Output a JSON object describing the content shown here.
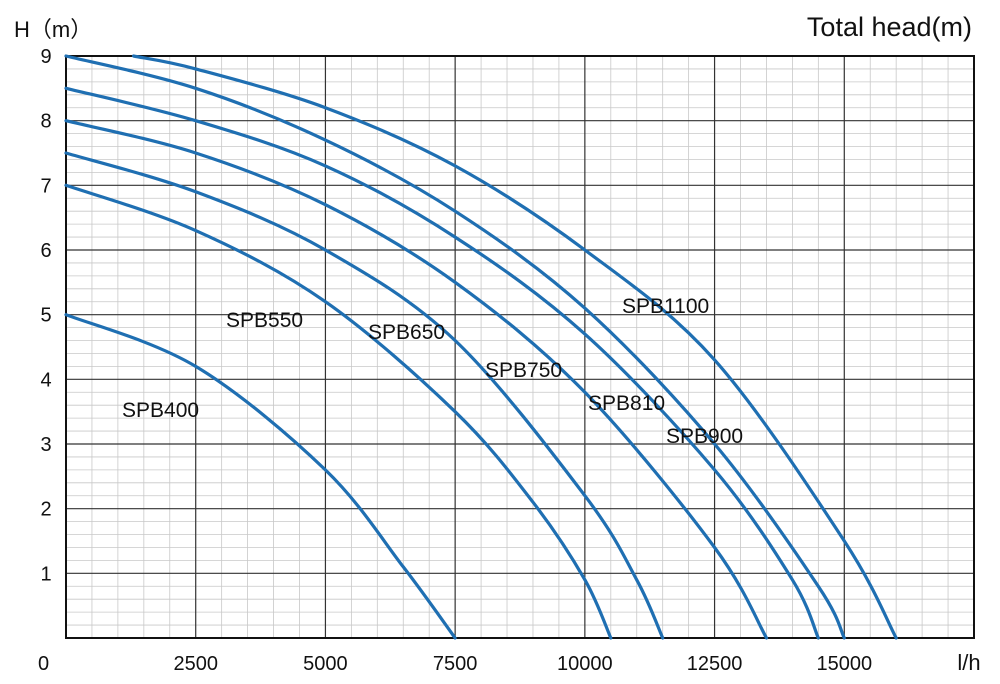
{
  "chart_data": {
    "type": "line",
    "title": "Total head(m)",
    "ylabel": "H（m）",
    "xlabel": "l/h",
    "xlim": [
      0,
      17500
    ],
    "ylim": [
      0,
      9
    ],
    "x_ticks": [
      0,
      2500,
      5000,
      7500,
      10000,
      12500,
      15000
    ],
    "x_tick_labels": [
      "0",
      "2500",
      "5000",
      "7500",
      "10000",
      "12500",
      "15000"
    ],
    "y_ticks": [
      1,
      2,
      3,
      4,
      5,
      6,
      7,
      8,
      9
    ],
    "y_tick_labels": [
      "1",
      "2",
      "3",
      "4",
      "5",
      "6",
      "7",
      "8",
      "9"
    ],
    "grid": true,
    "colors": {
      "curve": "#1f6fb2",
      "grid_major": "#333333",
      "grid_minor": "#c8c8c8",
      "frame": "#111111"
    },
    "series": [
      {
        "name": "SPB400",
        "x": [
          0,
          2500,
          5000,
          6500,
          7500
        ],
        "y": [
          5.0,
          4.2,
          2.6,
          1.1,
          0.0
        ]
      },
      {
        "name": "SPB550",
        "x": [
          0,
          2500,
          5000,
          7500,
          9000,
          10000,
          10500
        ],
        "y": [
          7.0,
          6.3,
          5.2,
          3.5,
          2.1,
          0.9,
          0.0
        ]
      },
      {
        "name": "SPB650",
        "x": [
          0,
          2500,
          5000,
          7500,
          10000,
          11000,
          11500
        ],
        "y": [
          7.5,
          6.9,
          6.0,
          4.6,
          2.2,
          0.9,
          0.0
        ]
      },
      {
        "name": "SPB750",
        "x": [
          0,
          2500,
          5000,
          7500,
          10000,
          12500,
          13500
        ],
        "y": [
          8.0,
          7.5,
          6.7,
          5.5,
          3.8,
          1.4,
          0.0
        ]
      },
      {
        "name": "SPB810",
        "x": [
          0,
          2500,
          5000,
          7500,
          10000,
          12500,
          14000,
          14500
        ],
        "y": [
          8.5,
          8.0,
          7.3,
          6.2,
          4.7,
          2.6,
          0.9,
          0.0
        ]
      },
      {
        "name": "SPB900",
        "x": [
          0,
          2500,
          5000,
          7500,
          10000,
          12500,
          14500,
          15000
        ],
        "y": [
          9.0,
          8.5,
          7.7,
          6.6,
          5.1,
          3.0,
          0.8,
          0.0
        ]
      },
      {
        "name": "SPB1100",
        "x": [
          1300,
          2500,
          5000,
          7500,
          10000,
          12500,
          15000,
          16000
        ],
        "y": [
          9.0,
          8.8,
          8.2,
          7.3,
          6.0,
          4.3,
          1.5,
          0.0
        ]
      }
    ]
  }
}
